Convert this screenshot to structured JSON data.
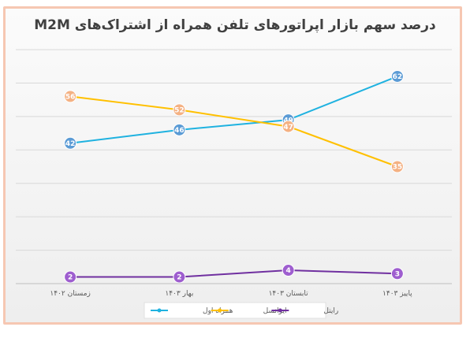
{
  "chart_data": {
    "type": "line",
    "title": "درصد سهم بازار اپراتورهای تلفن همراه از اشتراک‌های M2M",
    "categories": [
      "زمستان ۱۴۰۲",
      "بهار ۱۴۰۳",
      "تابستان ۱۴۰۳",
      "پاییز ۱۴۰۳"
    ],
    "series": [
      {
        "name": "همراه اول",
        "values": [
          42,
          46,
          49,
          62
        ],
        "color": "#1fb2e0",
        "marker": "#5b9bd5"
      },
      {
        "name": "ایرانسل",
        "values": [
          56,
          52,
          47,
          35
        ],
        "color": "#ffc000",
        "marker": "#f4b183"
      },
      {
        "name": "رایتل",
        "values": [
          2,
          2,
          4,
          3
        ],
        "color": "#7030a0",
        "marker": "#9e5ecf"
      }
    ],
    "ylim": [
      0,
      70
    ],
    "grid": true,
    "legend_position": "bottom"
  }
}
